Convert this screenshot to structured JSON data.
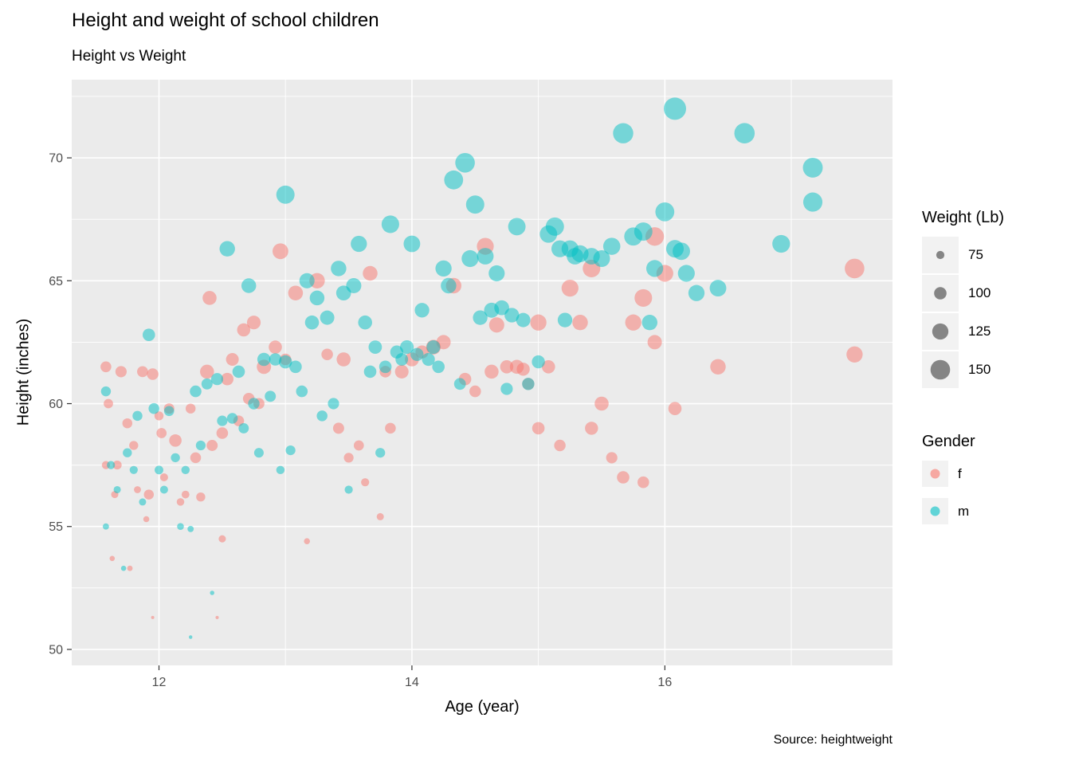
{
  "chart_data": {
    "type": "scatter",
    "title": "Height and weight of school children",
    "subtitle": "Height vs Weight",
    "caption": "Source: heightweight",
    "xlabel": "Age (year)",
    "ylabel": "Height (inches)",
    "x_domain": [
      11.31,
      17.8
    ],
    "y_domain": [
      49.35,
      73.18
    ],
    "x_ticks": [
      12,
      14,
      16
    ],
    "x_minor_ticks": [
      13,
      15,
      17
    ],
    "y_ticks": [
      50,
      55,
      60,
      65,
      70
    ],
    "y_minor_ticks": [
      52.5,
      57.5,
      62.5,
      67.5,
      72.5
    ],
    "size_domain": [
      50.5,
      171.5
    ],
    "size_legend_title": "Weight (Lb)",
    "size_legend": [
      75,
      100,
      125,
      150
    ],
    "gender_legend_title": "Gender",
    "gender_legend": [
      {
        "label": "f",
        "color": "#F8766D"
      },
      {
        "label": "m",
        "color": "#00BFC4"
      }
    ],
    "colors": {
      "f": "#F8766D",
      "m": "#00BFC4"
    },
    "point_alpha": 0.5,
    "panel_background": "#EBEBEB",
    "gridline_color": "#FFFFFF",
    "tick_label_color": "#4D4D4D",
    "points": [
      [
        11.58,
        61.5,
        90,
        "f"
      ],
      [
        11.58,
        57.5,
        75,
        "f"
      ],
      [
        11.6,
        60.0,
        82,
        "f"
      ],
      [
        11.63,
        53.7,
        60,
        "f"
      ],
      [
        11.65,
        56.3,
        70,
        "f"
      ],
      [
        11.67,
        57.5,
        79,
        "f"
      ],
      [
        11.7,
        61.3,
        93,
        "f"
      ],
      [
        11.75,
        59.2,
        85,
        "f"
      ],
      [
        11.77,
        53.3,
        61,
        "f"
      ],
      [
        11.8,
        58.3,
        80,
        "f"
      ],
      [
        11.83,
        56.5,
        69,
        "f"
      ],
      [
        11.87,
        61.3,
        91,
        "f"
      ],
      [
        11.9,
        55.3,
        64,
        "f"
      ],
      [
        11.92,
        56.3,
        85,
        "f"
      ],
      [
        11.95,
        51.3,
        50.5,
        "f"
      ],
      [
        11.95,
        61.2,
        95,
        "f"
      ],
      [
        12.0,
        59.5,
        80,
        "f"
      ],
      [
        12.02,
        58.8,
        86,
        "f"
      ],
      [
        12.04,
        57.0,
        74,
        "f"
      ],
      [
        12.08,
        59.8,
        88,
        "f"
      ],
      [
        12.13,
        58.5,
        100,
        "f"
      ],
      [
        12.17,
        56.0,
        72,
        "f"
      ],
      [
        12.21,
        56.3,
        73,
        "f"
      ],
      [
        12.25,
        59.8,
        85,
        "f"
      ],
      [
        12.29,
        57.8,
        90,
        "f"
      ],
      [
        12.33,
        56.2,
        80,
        "f"
      ],
      [
        12.38,
        61.3,
        110,
        "f"
      ],
      [
        12.4,
        64.3,
        110,
        "f"
      ],
      [
        12.42,
        58.3,
        92,
        "f"
      ],
      [
        12.46,
        51.3,
        51,
        "f"
      ],
      [
        12.5,
        54.5,
        70,
        "f"
      ],
      [
        12.5,
        58.8,
        95,
        "f"
      ],
      [
        12.54,
        61.0,
        100,
        "f"
      ],
      [
        12.58,
        61.8,
        102,
        "f"
      ],
      [
        12.63,
        59.3,
        90,
        "f"
      ],
      [
        12.67,
        63.0,
        105,
        "f"
      ],
      [
        12.71,
        60.2,
        95,
        "f"
      ],
      [
        12.75,
        63.3,
        108,
        "f"
      ],
      [
        12.79,
        60.0,
        92,
        "f"
      ],
      [
        12.83,
        61.5,
        112,
        "f"
      ],
      [
        12.92,
        62.3,
        105,
        "f"
      ],
      [
        12.96,
        66.2,
        122,
        "f"
      ],
      [
        13.0,
        61.8,
        95,
        "f"
      ],
      [
        13.08,
        64.5,
        115,
        "f"
      ],
      [
        13.17,
        54.4,
        64,
        "f"
      ],
      [
        13.25,
        65.0,
        120,
        "f"
      ],
      [
        13.33,
        62.0,
        94.5,
        "f"
      ],
      [
        13.42,
        59.0,
        92,
        "f"
      ],
      [
        13.46,
        61.8,
        110,
        "f"
      ],
      [
        13.5,
        57.8,
        84,
        "f"
      ],
      [
        13.58,
        58.3,
        86,
        "f"
      ],
      [
        13.63,
        56.8,
        75,
        "f"
      ],
      [
        13.67,
        65.3,
        115,
        "f"
      ],
      [
        13.75,
        55.4,
        70,
        "f"
      ],
      [
        13.79,
        61.3,
        95,
        "f"
      ],
      [
        13.83,
        59.0,
        90,
        "f"
      ],
      [
        13.92,
        61.3,
        107.5,
        "f"
      ],
      [
        14.0,
        61.8,
        110,
        "f"
      ],
      [
        14.08,
        62.1,
        104,
        "f"
      ],
      [
        14.17,
        62.3,
        115,
        "f"
      ],
      [
        14.25,
        62.5,
        112,
        "f"
      ],
      [
        14.33,
        64.8,
        120,
        "f"
      ],
      [
        14.42,
        61.0,
        100,
        "f"
      ],
      [
        14.5,
        60.5,
        95,
        "f"
      ],
      [
        14.58,
        66.4,
        130,
        "f"
      ],
      [
        14.63,
        61.3,
        110,
        "f"
      ],
      [
        14.67,
        63.2,
        118,
        "f"
      ],
      [
        14.75,
        61.5,
        105,
        "f"
      ],
      [
        14.83,
        61.5,
        110,
        "f"
      ],
      [
        14.88,
        61.4,
        104,
        "f"
      ],
      [
        14.92,
        60.8,
        98,
        "f"
      ],
      [
        15.0,
        63.3,
        125,
        "f"
      ],
      [
        15.0,
        59.0,
        100,
        "f"
      ],
      [
        15.08,
        61.5,
        105,
        "f"
      ],
      [
        15.17,
        58.3,
        94,
        "f"
      ],
      [
        15.25,
        64.7,
        130,
        "f"
      ],
      [
        15.33,
        63.3,
        120,
        "f"
      ],
      [
        15.42,
        59.0,
        104,
        "f"
      ],
      [
        15.42,
        65.5,
        135,
        "f"
      ],
      [
        15.5,
        60.0,
        110,
        "f"
      ],
      [
        15.58,
        57.8,
        93,
        "f"
      ],
      [
        15.67,
        57.0,
        100,
        "f"
      ],
      [
        15.75,
        63.3,
        125,
        "f"
      ],
      [
        15.83,
        56.8,
        95,
        "f"
      ],
      [
        15.83,
        64.3,
        135,
        "f"
      ],
      [
        15.92,
        62.5,
        112.5,
        "f"
      ],
      [
        15.92,
        66.8,
        142,
        "f"
      ],
      [
        16.0,
        65.3,
        130,
        "f"
      ],
      [
        16.08,
        59.8,
        105,
        "f"
      ],
      [
        16.42,
        61.5,
        120,
        "f"
      ],
      [
        17.5,
        65.5,
        150,
        "f"
      ],
      [
        17.5,
        62.0,
        125,
        "f"
      ],
      [
        11.58,
        60.5,
        85,
        "m"
      ],
      [
        11.58,
        55.0,
        65,
        "m"
      ],
      [
        11.62,
        57.5,
        75,
        "m"
      ],
      [
        11.67,
        56.5,
        70,
        "m"
      ],
      [
        11.72,
        53.3,
        60,
        "m"
      ],
      [
        11.75,
        58.0,
        80,
        "m"
      ],
      [
        11.8,
        57.3,
        75,
        "m"
      ],
      [
        11.83,
        59.5,
        85,
        "m"
      ],
      [
        11.87,
        56.0,
        70,
        "m"
      ],
      [
        11.92,
        62.8,
        100,
        "m"
      ],
      [
        11.96,
        59.8,
        90,
        "m"
      ],
      [
        12.0,
        57.3,
        78,
        "m"
      ],
      [
        12.04,
        56.5,
        74,
        "m"
      ],
      [
        12.08,
        59.7,
        86,
        "m"
      ],
      [
        12.13,
        57.8,
        80,
        "m"
      ],
      [
        12.17,
        55.0,
        68,
        "m"
      ],
      [
        12.21,
        57.3,
        76,
        "m"
      ],
      [
        12.25,
        50.5,
        52,
        "m"
      ],
      [
        12.25,
        54.9,
        65,
        "m"
      ],
      [
        12.29,
        60.5,
        95,
        "m"
      ],
      [
        12.33,
        58.3,
        84,
        "m"
      ],
      [
        12.38,
        60.8,
        92,
        "m"
      ],
      [
        12.42,
        52.3,
        56,
        "m"
      ],
      [
        12.46,
        61.0,
        98,
        "m"
      ],
      [
        12.5,
        59.3,
        88,
        "m"
      ],
      [
        12.54,
        66.3,
        120,
        "m"
      ],
      [
        12.58,
        59.4,
        90,
        "m"
      ],
      [
        12.63,
        61.3,
        100,
        "m"
      ],
      [
        12.67,
        59.0,
        87,
        "m"
      ],
      [
        12.71,
        64.8,
        115,
        "m"
      ],
      [
        12.75,
        60.0,
        94,
        "m"
      ],
      [
        12.79,
        58.0,
        83,
        "m"
      ],
      [
        12.83,
        61.8,
        105,
        "m"
      ],
      [
        12.88,
        60.3,
        92,
        "m"
      ],
      [
        12.92,
        61.8,
        100,
        "m"
      ],
      [
        12.96,
        57.3,
        76,
        "m"
      ],
      [
        13.0,
        68.5,
        140,
        "m"
      ],
      [
        13.0,
        61.7,
        105,
        "m"
      ],
      [
        13.04,
        58.1,
        84,
        "m"
      ],
      [
        13.08,
        61.5,
        100,
        "m"
      ],
      [
        13.13,
        60.5,
        95,
        "m"
      ],
      [
        13.17,
        65.0,
        118,
        "m"
      ],
      [
        13.21,
        63.3,
        110,
        "m"
      ],
      [
        13.25,
        64.3,
        115,
        "m"
      ],
      [
        13.29,
        59.5,
        90,
        "m"
      ],
      [
        13.33,
        63.5,
        112,
        "m"
      ],
      [
        13.38,
        60.0,
        93,
        "m"
      ],
      [
        13.42,
        65.5,
        120,
        "m"
      ],
      [
        13.46,
        64.5,
        116,
        "m"
      ],
      [
        13.5,
        56.5,
        75,
        "m"
      ],
      [
        13.54,
        64.8,
        118,
        "m"
      ],
      [
        13.58,
        66.5,
        125,
        "m"
      ],
      [
        13.63,
        63.3,
        110,
        "m"
      ],
      [
        13.67,
        61.3,
        100,
        "m"
      ],
      [
        13.71,
        62.3,
        106,
        "m"
      ],
      [
        13.75,
        58.0,
        84,
        "m"
      ],
      [
        13.79,
        61.5,
        100,
        "m"
      ],
      [
        13.83,
        67.3,
        135,
        "m"
      ],
      [
        13.88,
        62.1,
        104,
        "m"
      ],
      [
        13.92,
        61.8,
        101,
        "m"
      ],
      [
        13.96,
        62.3,
        108,
        "m"
      ],
      [
        14.0,
        66.5,
        128,
        "m"
      ],
      [
        14.04,
        62.0,
        104,
        "m"
      ],
      [
        14.08,
        63.8,
        114,
        "m"
      ],
      [
        14.13,
        61.8,
        103,
        "m"
      ],
      [
        14.17,
        62.3,
        108,
        "m"
      ],
      [
        14.21,
        61.5,
        100,
        "m"
      ],
      [
        14.25,
        65.5,
        125,
        "m"
      ],
      [
        14.29,
        64.8,
        120,
        "m"
      ],
      [
        14.33,
        69.1,
        145,
        "m"
      ],
      [
        14.38,
        60.8,
        96,
        "m"
      ],
      [
        14.42,
        69.8,
        150,
        "m"
      ],
      [
        14.46,
        65.9,
        130,
        "m"
      ],
      [
        14.5,
        68.1,
        140,
        "m"
      ],
      [
        14.54,
        63.5,
        114,
        "m"
      ],
      [
        14.58,
        66.0,
        128,
        "m"
      ],
      [
        14.63,
        63.8,
        117,
        "m"
      ],
      [
        14.67,
        65.3,
        124,
        "m"
      ],
      [
        14.71,
        63.9,
        116,
        "m"
      ],
      [
        14.75,
        60.6,
        98,
        "m"
      ],
      [
        14.79,
        63.6,
        114,
        "m"
      ],
      [
        14.83,
        67.2,
        134,
        "m"
      ],
      [
        14.88,
        63.4,
        112,
        "m"
      ],
      [
        14.92,
        60.8,
        99,
        "m"
      ],
      [
        15.0,
        61.7,
        104,
        "m"
      ],
      [
        15.08,
        66.9,
        134,
        "m"
      ],
      [
        15.13,
        67.2,
        140,
        "m"
      ],
      [
        15.17,
        66.3,
        130,
        "m"
      ],
      [
        15.21,
        63.4,
        114,
        "m"
      ],
      [
        15.25,
        66.3,
        130,
        "m"
      ],
      [
        15.29,
        66.0,
        128,
        "m"
      ],
      [
        15.33,
        66.1,
        130,
        "m"
      ],
      [
        15.42,
        66.0,
        128,
        "m"
      ],
      [
        15.5,
        65.9,
        129,
        "m"
      ],
      [
        15.58,
        66.4,
        132,
        "m"
      ],
      [
        15.67,
        71.0,
        155,
        "m"
      ],
      [
        15.75,
        66.8,
        139,
        "m"
      ],
      [
        15.83,
        67.0,
        140,
        "m"
      ],
      [
        15.88,
        63.3,
        120,
        "m"
      ],
      [
        15.92,
        65.5,
        130,
        "m"
      ],
      [
        16.0,
        67.8,
        145,
        "m"
      ],
      [
        16.08,
        72.0,
        171.5,
        "m"
      ],
      [
        16.08,
        66.3,
        135,
        "m"
      ],
      [
        16.13,
        66.2,
        134,
        "m"
      ],
      [
        16.17,
        65.3,
        130,
        "m"
      ],
      [
        16.25,
        64.5,
        125,
        "m"
      ],
      [
        16.42,
        64.7,
        128,
        "m"
      ],
      [
        16.63,
        71.0,
        156,
        "m"
      ],
      [
        16.92,
        66.5,
        136,
        "m"
      ],
      [
        17.17,
        69.6,
        152,
        "m"
      ],
      [
        17.17,
        68.2,
        147,
        "m"
      ]
    ]
  }
}
